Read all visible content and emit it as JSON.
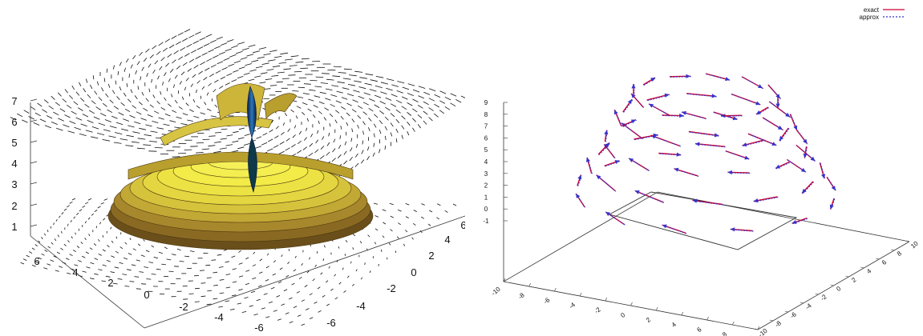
{
  "chart_data": [
    {
      "type": "surface",
      "description": "3D surface with overlaid vector field planes",
      "z_ticks": [
        "1",
        "2",
        "3",
        "4",
        "5",
        "6",
        "7"
      ],
      "x_ticks": [
        "6",
        "4",
        "2",
        "0",
        "-2",
        "-4",
        "-6"
      ],
      "y_ticks": [
        "-6",
        "-4",
        "-2",
        "0",
        "2",
        "4",
        "6"
      ],
      "colors": {
        "surface_base": "#6b4f1a",
        "surface_mid": "#c9b43a",
        "surface_top": "#f2ee4a",
        "axis_core": "#0a1e5c",
        "vectors": "#111111"
      }
    },
    {
      "type": "vector",
      "description": "3D vector field comparing exact vs approx",
      "z_ticks": [
        "-1",
        "0",
        "1",
        "2",
        "3",
        "4",
        "5",
        "6",
        "7",
        "8",
        "9"
      ],
      "x_ticks": [
        "-10",
        "-8",
        "-6",
        "-4",
        "-2",
        "0",
        "2",
        "4",
        "6",
        "8",
        "10"
      ],
      "y_ticks": [
        "10",
        "8",
        "6",
        "4",
        "2",
        "0",
        "-2",
        "-4",
        "-6",
        "-8",
        "-10"
      ],
      "series": [
        {
          "name": "exact",
          "color": "#cc0033",
          "style": "solid"
        },
        {
          "name": "approx",
          "color": "#3333cc",
          "style": "dotted"
        }
      ],
      "legend": "top-right"
    }
  ]
}
